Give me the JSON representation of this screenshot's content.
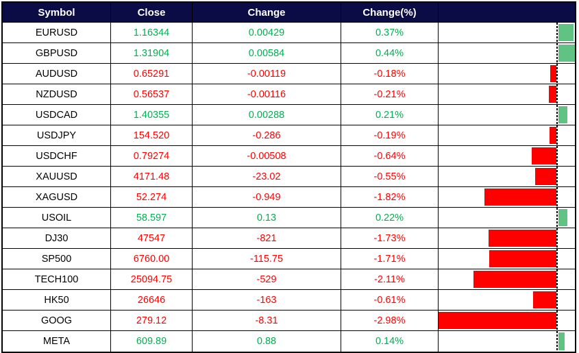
{
  "header": {
    "columns": [
      "Symbol",
      "Close",
      "Change",
      "Change(%)",
      ""
    ]
  },
  "rows": [
    {
      "symbol": "EURUSD",
      "close": "1.16344",
      "change": "0.00429",
      "change_pct": "0.37%",
      "pct": 0.37,
      "direction": "up"
    },
    {
      "symbol": "GBPUSD",
      "close": "1.31904",
      "change": "0.00584",
      "change_pct": "0.44%",
      "pct": 0.44,
      "direction": "up"
    },
    {
      "symbol": "AUDUSD",
      "close": "0.65291",
      "change": "-0.00119",
      "change_pct": "-0.18%",
      "pct": -0.18,
      "direction": "down"
    },
    {
      "symbol": "NZDUSD",
      "close": "0.56537",
      "change": "-0.00116",
      "change_pct": "-0.21%",
      "pct": -0.21,
      "direction": "down"
    },
    {
      "symbol": "USDCAD",
      "close": "1.40355",
      "change": "0.00288",
      "change_pct": "0.21%",
      "pct": 0.21,
      "direction": "up"
    },
    {
      "symbol": "USDJPY",
      "close": "154.520",
      "change": "-0.286",
      "change_pct": "-0.19%",
      "pct": -0.19,
      "direction": "down"
    },
    {
      "symbol": "USDCHF",
      "close": "0.79274",
      "change": "-0.00508",
      "change_pct": "-0.64%",
      "pct": -0.64,
      "direction": "down"
    },
    {
      "symbol": "XAUUSD",
      "close": "4171.48",
      "change": "-23.02",
      "change_pct": "-0.55%",
      "pct": -0.55,
      "direction": "down"
    },
    {
      "symbol": "XAGUSD",
      "close": "52.274",
      "change": "-0.949",
      "change_pct": "-1.82%",
      "pct": -1.82,
      "direction": "down"
    },
    {
      "symbol": "USOIL",
      "close": "58.597",
      "change": "0.13",
      "change_pct": "0.22%",
      "pct": 0.22,
      "direction": "up"
    },
    {
      "symbol": "DJ30",
      "close": "47547",
      "change": "-821",
      "change_pct": "-1.73%",
      "pct": -1.73,
      "direction": "down"
    },
    {
      "symbol": "SP500",
      "close": "6760.00",
      "change": "-115.75",
      "change_pct": "-1.71%",
      "pct": -1.71,
      "direction": "down"
    },
    {
      "symbol": "TECH100",
      "close": "25094.75",
      "change": "-529",
      "change_pct": "-2.11%",
      "pct": -2.11,
      "direction": "down"
    },
    {
      "symbol": "HK50",
      "close": "26646",
      "change": "-163",
      "change_pct": "-0.61%",
      "pct": -0.61,
      "direction": "down"
    },
    {
      "symbol": "GOOG",
      "close": "279.12",
      "change": "-8.31",
      "change_pct": "-2.98%",
      "pct": -2.98,
      "direction": "down"
    },
    {
      "symbol": "META",
      "close": "609.89",
      "change": "0.88",
      "change_pct": "0.14%",
      "pct": 0.14,
      "direction": "up"
    }
  ],
  "bar_axis": {
    "min": -2.98,
    "max": 0.44
  },
  "colors": {
    "header_bg": "#0b0b46",
    "header_text": "#ffffff",
    "symbol_text": "#000000",
    "up_text": "#00b050",
    "down_text": "#ff0000",
    "up_bar": "#61c383",
    "down_bar": "#ff0000",
    "grid": "#000000"
  },
  "chart_data": {
    "type": "table",
    "title": "Market watchlist with Change(%) data bars",
    "columns": [
      "Symbol",
      "Close",
      "Change",
      "Change(%)"
    ],
    "rows": [
      [
        "EURUSD",
        1.16344,
        0.00429,
        0.37
      ],
      [
        "GBPUSD",
        1.31904,
        0.00584,
        0.44
      ],
      [
        "AUDUSD",
        0.65291,
        -0.00119,
        -0.18
      ],
      [
        "NZDUSD",
        0.56537,
        -0.00116,
        -0.21
      ],
      [
        "USDCAD",
        1.40355,
        0.00288,
        0.21
      ],
      [
        "USDJPY",
        154.52,
        -0.286,
        -0.19
      ],
      [
        "USDCHF",
        0.79274,
        -0.00508,
        -0.64
      ],
      [
        "XAUUSD",
        4171.48,
        -23.02,
        -0.55
      ],
      [
        "XAGUSD",
        52.274,
        -0.949,
        -1.82
      ],
      [
        "USOIL",
        58.597,
        0.13,
        0.22
      ],
      [
        "DJ30",
        47547,
        -821,
        -1.73
      ],
      [
        "SP500",
        6760.0,
        -115.75,
        -1.71
      ],
      [
        "TECH100",
        25094.75,
        -529,
        -2.11
      ],
      [
        "HK50",
        26646,
        -163,
        -0.61
      ],
      [
        "GOOG",
        279.12,
        -8.31,
        -2.98
      ],
      [
        "META",
        609.89,
        0.88,
        0.14
      ]
    ],
    "data_bars": {
      "bound_column": "Change(%)",
      "axis_min": -2.98,
      "axis_max": 0.44,
      "zero_axis_style": "dashed-vertical-line",
      "positive_color": "#61c383",
      "negative_color": "#ff0000"
    },
    "grid": true,
    "legend": false
  }
}
